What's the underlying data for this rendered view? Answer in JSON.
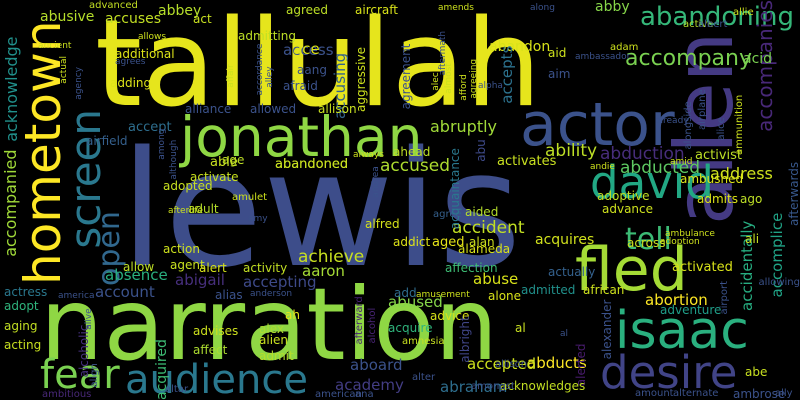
{
  "words": [
    {
      "text": "tallulah",
      "color": "#e6e51c"
    },
    {
      "text": "lewis",
      "color": "#3d4d8a"
    },
    {
      "text": "narration",
      "color": "#8fd744"
    },
    {
      "text": "allen",
      "color": "#443a83"
    },
    {
      "text": "jonathan",
      "color": "#8fd744"
    },
    {
      "text": "hometown",
      "color": "#fde725"
    },
    {
      "text": "actor",
      "color": "#3b528b"
    },
    {
      "text": "screen",
      "color": "#2a788e"
    },
    {
      "text": "fled",
      "color": "#a5db36"
    },
    {
      "text": "isaac",
      "color": "#2ab07f"
    },
    {
      "text": "desire",
      "color": "#414487"
    },
    {
      "text": "audience",
      "color": "#2a788e"
    },
    {
      "text": "david",
      "color": "#22a884"
    },
    {
      "text": "open",
      "color": "#31688e"
    },
    {
      "text": "fear",
      "color": "#7ad151"
    },
    {
      "text": "tell",
      "color": "#3cbb75"
    },
    {
      "text": "abandoning",
      "color": "#35b779"
    },
    {
      "text": "accompany",
      "color": "#7ad151"
    },
    {
      "text": "accompanies",
      "color": "#482878"
    },
    {
      "text": "accompanied",
      "color": "#a0da39"
    },
    {
      "text": "acknowledge",
      "color": "#21918c"
    },
    {
      "text": "ability",
      "color": "#bddf26"
    },
    {
      "text": "abduction",
      "color": "#472d7b"
    },
    {
      "text": "abducted",
      "color": "#5ec962"
    },
    {
      "text": "address",
      "color": "#cde11d"
    },
    {
      "text": "accused",
      "color": "#addc30"
    },
    {
      "text": "accident",
      "color": "#c2df23"
    },
    {
      "text": "achieve",
      "color": "#c8e020"
    },
    {
      "text": "abandoned",
      "color": "#c8e020"
    },
    {
      "text": "abusive",
      "color": "#b5de2b"
    },
    {
      "text": "accuses",
      "color": "#c2df23"
    },
    {
      "text": "abbey",
      "color": "#b5de2b"
    },
    {
      "text": "abby",
      "color": "#86d549"
    },
    {
      "text": "abandon",
      "color": "#d8e219"
    },
    {
      "text": "access",
      "color": "#3b528b"
    },
    {
      "text": "accusing",
      "color": "#33638d"
    },
    {
      "text": "accepts",
      "color": "#2c728e"
    },
    {
      "text": "abruptly",
      "color": "#a0da39"
    },
    {
      "text": "aaron",
      "color": "#a5db36"
    },
    {
      "text": "abused",
      "color": "#86d549"
    },
    {
      "text": "abuse",
      "color": "#d8e219"
    },
    {
      "text": "abortion",
      "color": "#fde725"
    },
    {
      "text": "accepting",
      "color": "#3e4a89"
    },
    {
      "text": "abigail",
      "color": "#472f7d"
    },
    {
      "text": "absence",
      "color": "#29af7f"
    },
    {
      "text": "account",
      "color": "#3b528b"
    },
    {
      "text": "accomplice",
      "color": "#20a386"
    },
    {
      "text": "accidentally",
      "color": "#27ad81"
    },
    {
      "text": "acquires",
      "color": "#d0e11c"
    },
    {
      "text": "acquired",
      "color": "#3dbc74"
    },
    {
      "text": "abducts",
      "color": "#fde725"
    },
    {
      "text": "abraham",
      "color": "#2e6e8e"
    },
    {
      "text": "academy",
      "color": "#433d84"
    },
    {
      "text": "aboard",
      "color": "#3b528b"
    },
    {
      "text": "accepted",
      "color": "#cde11d"
    },
    {
      "text": "advice",
      "color": "#d8e219"
    },
    {
      "text": "activist",
      "color": "#bddf26"
    },
    {
      "text": "activates",
      "color": "#c8e020"
    },
    {
      "text": "activated",
      "color": "#d8e219"
    },
    {
      "text": "accept",
      "color": "#2e6e8e"
    },
    {
      "text": "able",
      "color": "#c8e020"
    },
    {
      "text": "ace",
      "color": "#dde318"
    },
    {
      "text": "aang",
      "color": "#3b528b"
    },
    {
      "text": "acid",
      "color": "#7ad151"
    },
    {
      "text": "alfred",
      "color": "#d5e21a"
    },
    {
      "text": "aged",
      "color": "#e5e419"
    },
    {
      "text": "agree",
      "color": "#35608d"
    },
    {
      "text": "aided",
      "color": "#b5de2b"
    },
    {
      "text": "alan",
      "color": "#cde11d"
    },
    {
      "text": "abu",
      "color": "#3e4a89"
    },
    {
      "text": "ahead",
      "color": "#bddf26"
    },
    {
      "text": "adoptive",
      "color": "#c2df23"
    },
    {
      "text": "advance",
      "color": "#cde11d"
    },
    {
      "text": "acquaintance",
      "color": "#2a788e"
    },
    {
      "text": "admits",
      "color": "#dde318"
    },
    {
      "text": "ago",
      "color": "#bddf26"
    },
    {
      "text": "ali",
      "color": "#c8e020"
    },
    {
      "text": "across",
      "color": "#c8e020"
    },
    {
      "text": "afterwards",
      "color": "#38588c"
    },
    {
      "text": "african",
      "color": "#cde11d"
    },
    {
      "text": "adventure",
      "color": "#1f9e89"
    },
    {
      "text": "admitted",
      "color": "#21918c"
    },
    {
      "text": "add",
      "color": "#2f6c8e"
    },
    {
      "text": "alexander",
      "color": "#3b528b"
    },
    {
      "text": "alerted",
      "color": "#481b6d"
    },
    {
      "text": "afterward",
      "color": "#482475"
    },
    {
      "text": "alcohol",
      "color": "#482475"
    },
    {
      "text": "alcoholic",
      "color": "#46307e"
    },
    {
      "text": "albright",
      "color": "#404688"
    },
    {
      "text": "acquire",
      "color": "#2fb47c"
    },
    {
      "text": "alien",
      "color": "#c8e020"
    },
    {
      "text": "alex",
      "color": "#addc30"
    },
    {
      "text": "admit",
      "color": "#b5de2b"
    },
    {
      "text": "affect",
      "color": "#addc30"
    },
    {
      "text": "advises",
      "color": "#cde11d"
    },
    {
      "text": "ah",
      "color": "#e5e419"
    },
    {
      "text": "adult",
      "color": "#b5de2b"
    },
    {
      "text": "action",
      "color": "#cde11d"
    },
    {
      "text": "agent",
      "color": "#c8e020"
    },
    {
      "text": "adopted",
      "color": "#c8e020"
    },
    {
      "text": "activate",
      "color": "#c8e020"
    },
    {
      "text": "abandoned",
      "color": "#c8e020"
    },
    {
      "text": "allow",
      "color": "#bddf26"
    },
    {
      "text": "alert",
      "color": "#d5e21a"
    },
    {
      "text": "activity",
      "color": "#c2df23"
    },
    {
      "text": "alias",
      "color": "#3b528b"
    },
    {
      "text": "alliance",
      "color": "#3b528b"
    },
    {
      "text": "allowed",
      "color": "#3b528b"
    },
    {
      "text": "airfield",
      "color": "#35608d"
    },
    {
      "text": "allison",
      "color": "#c8e020"
    },
    {
      "text": "affection",
      "color": "#3dbc74"
    },
    {
      "text": "actually",
      "color": "#34618d"
    },
    {
      "text": "alone",
      "color": "#d8e219"
    },
    {
      "text": "alameda",
      "color": "#d8e219"
    },
    {
      "text": "addict",
      "color": "#dde318"
    },
    {
      "text": "ambushed",
      "color": "#dde318"
    },
    {
      "text": "amulet",
      "color": "#cde11d"
    },
    {
      "text": "age",
      "color": "#bddf26"
    },
    {
      "text": "aircraft",
      "color": "#d8e219"
    },
    {
      "text": "agreed",
      "color": "#bddf26"
    },
    {
      "text": "advanced",
      "color": "#c2df23"
    },
    {
      "text": "act",
      "color": "#c8e020"
    },
    {
      "text": "actress",
      "color": "#2a788e"
    },
    {
      "text": "adopt",
      "color": "#2fb47c"
    },
    {
      "text": "aging",
      "color": "#c2df23"
    },
    {
      "text": "acting",
      "color": "#c8e020"
    },
    {
      "text": "align",
      "color": "#3b528b"
    },
    {
      "text": "altar",
      "color": "#3b528b"
    },
    {
      "text": "ambitious",
      "color": "#482878"
    },
    {
      "text": "american",
      "color": "#3b528b"
    },
    {
      "text": "ana",
      "color": "#3b528b"
    },
    {
      "text": "acknowledges",
      "color": "#c2df23"
    },
    {
      "text": "amount",
      "color": "#3b528b"
    },
    {
      "text": "alternate",
      "color": "#3b528b"
    },
    {
      "text": "ambrose",
      "color": "#3b528b"
    },
    {
      "text": "ally",
      "color": "#3b528b"
    },
    {
      "text": "abe",
      "color": "#c8e020"
    },
    {
      "text": "amnesia",
      "color": "#c8e020"
    },
    {
      "text": "alter",
      "color": "#3b528b"
    },
    {
      "text": "amongst",
      "color": "#3b528b"
    },
    {
      "text": "allison",
      "color": "#3b528b"
    },
    {
      "text": "al",
      "color": "#c8e020"
    },
    {
      "text": "aggressive",
      "color": "#cde11d"
    },
    {
      "text": "agreement",
      "color": "#3b528b"
    },
    {
      "text": "aid",
      "color": "#cde11d"
    },
    {
      "text": "aim",
      "color": "#3b528b"
    },
    {
      "text": "adding",
      "color": "#dde318"
    },
    {
      "text": "additional",
      "color": "#dde318"
    },
    {
      "text": "admitting",
      "color": "#bddf26"
    },
    {
      "text": "afraid",
      "color": "#3b528b"
    },
    {
      "text": "adam",
      "color": "#cde11d"
    },
    {
      "text": "active",
      "color": "#b5de2b"
    },
    {
      "text": "allie",
      "color": "#cde11d"
    },
    {
      "text": "albert",
      "color": "#3b528b"
    },
    {
      "text": "ammunition",
      "color": "#cde11d"
    },
    {
      "text": "airplane",
      "color": "#3b528b"
    },
    {
      "text": "alongside",
      "color": "#3b528b"
    },
    {
      "text": "alice",
      "color": "#3b528b"
    },
    {
      "text": "allowing",
      "color": "#3b528b"
    },
    {
      "text": "airport",
      "color": "#3b528b"
    },
    {
      "text": "ambulance",
      "color": "#cde11d"
    },
    {
      "text": "andie",
      "color": "#cde11d"
    },
    {
      "text": "amid",
      "color": "#cde11d"
    },
    {
      "text": "anderson",
      "color": "#3b528b"
    },
    {
      "text": "amy",
      "color": "#3b528b"
    },
    {
      "text": "andrea",
      "color": "#3b528b"
    },
    {
      "text": "always",
      "color": "#cde11d"
    },
    {
      "text": "among",
      "color": "#3b528b"
    },
    {
      "text": "afterlife",
      "color": "#cde11d"
    },
    {
      "text": "ancient",
      "color": "#cde11d"
    },
    {
      "text": "allows",
      "color": "#cde11d"
    },
    {
      "text": "agrees",
      "color": "#3b528b"
    },
    {
      "text": "accordance",
      "color": "#3b528b"
    },
    {
      "text": "affair",
      "color": "#cde11d"
    },
    {
      "text": "alley",
      "color": "#3b528b"
    },
    {
      "text": "aftermath",
      "color": "#3b528b"
    },
    {
      "text": "alec",
      "color": "#cde11d"
    },
    {
      "text": "almost",
      "color": "#cde11d"
    },
    {
      "text": "afford",
      "color": "#cde11d"
    },
    {
      "text": "agreeing",
      "color": "#cde11d"
    },
    {
      "text": "alpha",
      "color": "#3b528b"
    },
    {
      "text": "along",
      "color": "#3b528b"
    },
    {
      "text": "ambassador",
      "color": "#3b528b"
    },
    {
      "text": "amends",
      "color": "#cde11d"
    },
    {
      "text": "already",
      "color": "#3b528b"
    },
    {
      "text": "actual",
      "color": "#cde11d"
    },
    {
      "text": "agency",
      "color": "#3b528b"
    },
    {
      "text": "alive",
      "color": "#3b528b"
    },
    {
      "text": "adoption",
      "color": "#cde11d"
    },
    {
      "text": "america",
      "color": "#3b528b"
    },
    {
      "text": "amusement",
      "color": "#cde11d"
    },
    {
      "text": "although",
      "color": "#3b528b"
    },
    {
      "text": "al",
      "color": "#3b528b"
    }
  ]
}
